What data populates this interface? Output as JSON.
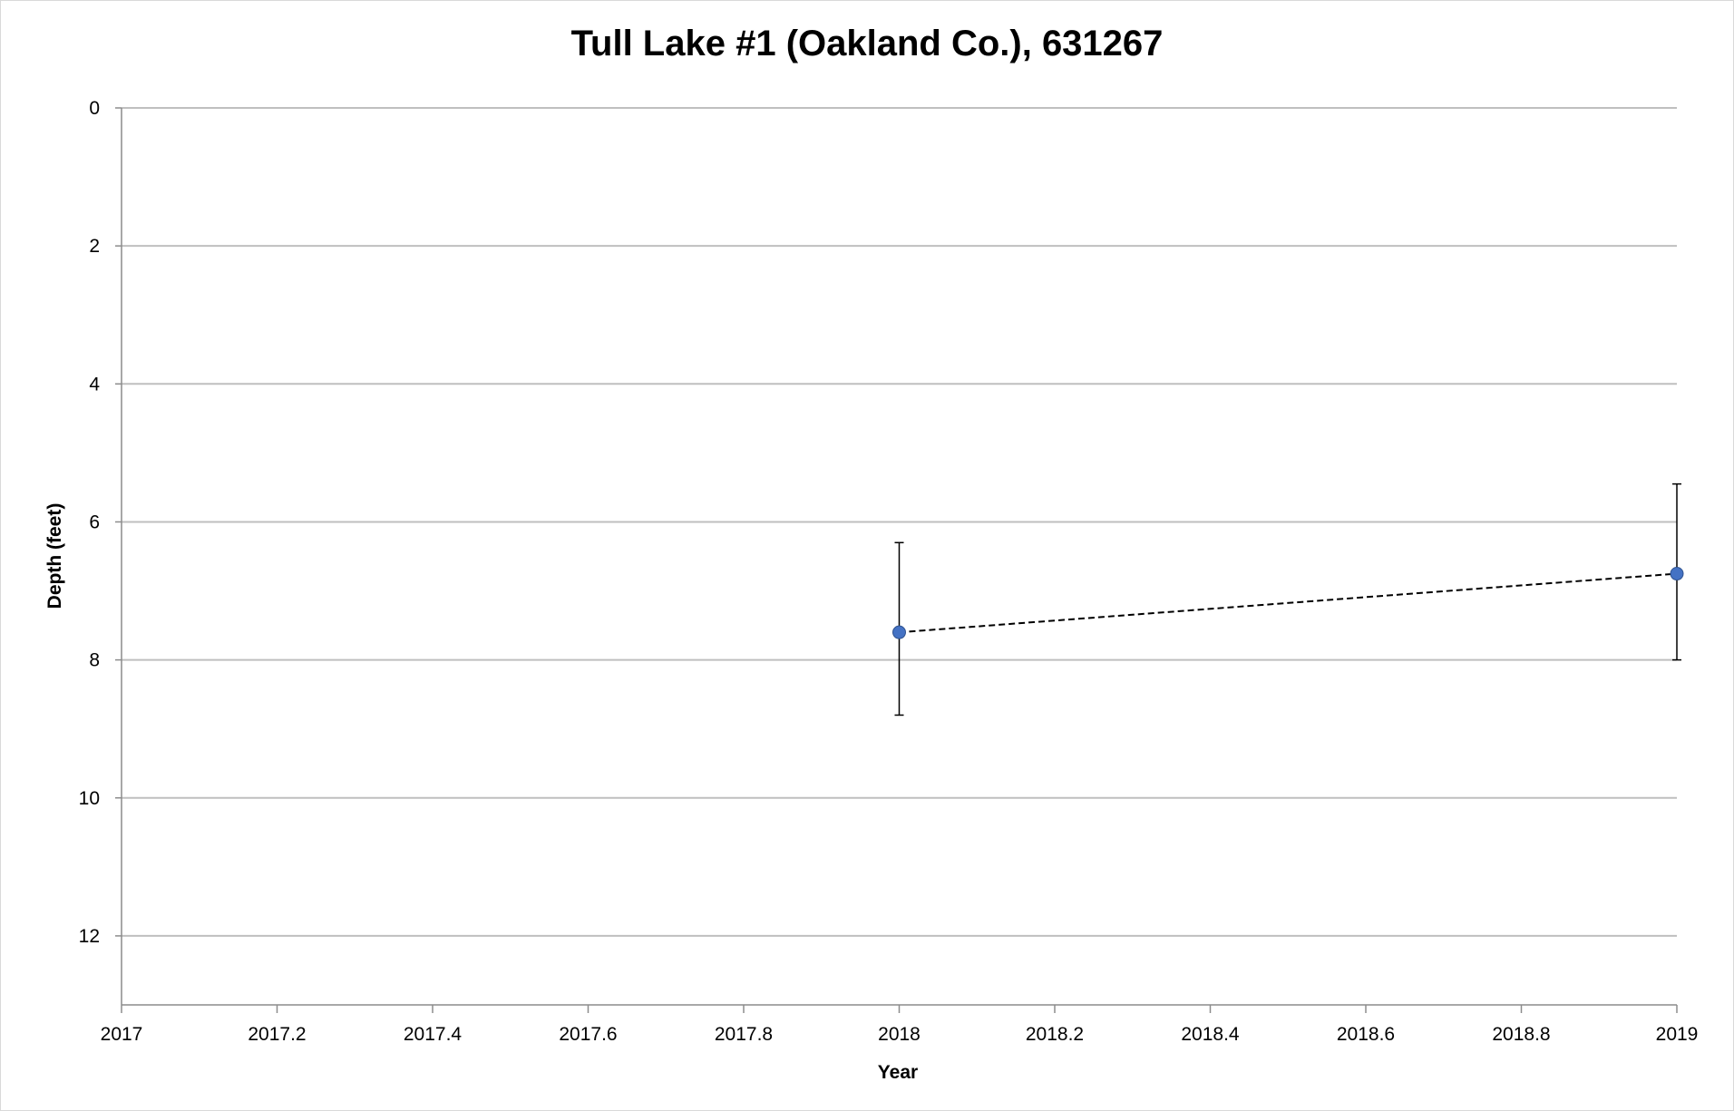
{
  "chart_data": {
    "type": "scatter",
    "title": "Tull Lake #1 (Oakland Co.), 631267",
    "xlabel": "Year",
    "ylabel": "Depth (feet)",
    "xlim": [
      2017,
      2019
    ],
    "ylim": [
      0,
      13
    ],
    "y_inverted": true,
    "xticks": [
      2017,
      2017.2,
      2017.4,
      2017.6,
      2017.8,
      2018,
      2018.2,
      2018.4,
      2018.6,
      2018.8,
      2019
    ],
    "xtick_labels": [
      "2017",
      "2017.2",
      "2017.4",
      "2017.6",
      "2017.8",
      "2018",
      "2018.2",
      "2018.4",
      "2018.6",
      "2018.8",
      "2019"
    ],
    "yticks": [
      0,
      2,
      4,
      6,
      8,
      10,
      12
    ],
    "ytick_labels": [
      "0",
      "2",
      "4",
      "6",
      "8",
      "10",
      "12"
    ],
    "grid": "horizontal",
    "series": [
      {
        "x": [
          2018,
          2019
        ],
        "y": [
          7.6,
          6.75
        ],
        "error_low": [
          6.3,
          5.45
        ],
        "error_high": [
          8.8,
          8.0
        ],
        "color": "#4472c4",
        "trendline": "dashed"
      }
    ]
  }
}
